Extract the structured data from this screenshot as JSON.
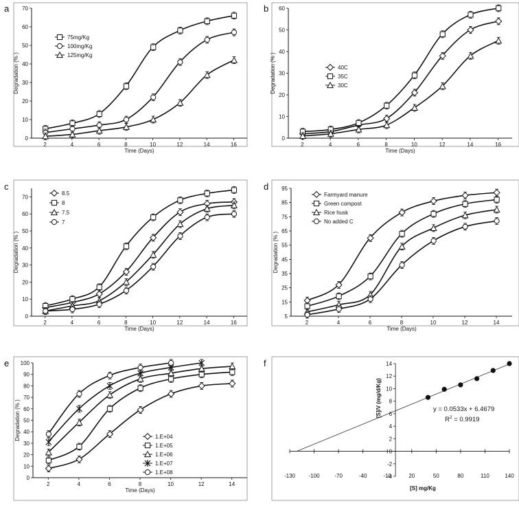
{
  "chart_data": [
    {
      "panel": "a",
      "type": "line",
      "xlabel": "Time (Days)",
      "ylabel": "Degradation (%   )",
      "xlim": [
        1,
        17
      ],
      "ylim": [
        0,
        70
      ],
      "xticks": [
        2,
        4,
        6,
        8,
        10,
        12,
        14,
        16
      ],
      "yticks": [
        0,
        10,
        20,
        30,
        40,
        50,
        60,
        70
      ],
      "legend_position": "top-left",
      "x": [
        2,
        4,
        6,
        8,
        10,
        12,
        14,
        16
      ],
      "series": [
        {
          "name": "75mg/Kg",
          "marker": "square",
          "values": [
            5,
            8,
            13,
            28,
            49,
            58,
            63,
            66
          ]
        },
        {
          "name": "100mg/Kg",
          "marker": "circle",
          "values": [
            3,
            5,
            7,
            10,
            22,
            41,
            53,
            57
          ]
        },
        {
          "name": "125mg/Kg",
          "marker": "triangle",
          "values": [
            1,
            2,
            4,
            6,
            10,
            19,
            34,
            42
          ]
        }
      ]
    },
    {
      "panel": "b",
      "type": "line",
      "xlabel": "Time (Days)",
      "ylabel": "Degradation (%   )",
      "xlim": [
        1,
        17
      ],
      "ylim": [
        0,
        60
      ],
      "xticks": [
        2,
        4,
        6,
        8,
        10,
        12,
        14,
        16
      ],
      "yticks": [
        0,
        10,
        20,
        30,
        40,
        50,
        60
      ],
      "legend_position": "middle-left",
      "x": [
        2,
        4,
        6,
        8,
        10,
        12,
        14,
        16
      ],
      "series": [
        {
          "name": "40C",
          "marker": "diamond",
          "values": [
            2,
            3,
            6,
            9,
            21,
            38,
            50,
            54
          ]
        },
        {
          "name": "35C",
          "marker": "square",
          "values": [
            3,
            4,
            7,
            15,
            29,
            48,
            57,
            60
          ]
        },
        {
          "name": "30C",
          "marker": "triangle",
          "values": [
            1,
            2,
            4,
            6,
            14,
            24,
            38,
            45
          ]
        }
      ]
    },
    {
      "panel": "c",
      "type": "line",
      "xlabel": "Time (Days)",
      "ylabel": "Degradation (%   )",
      "xlim": [
        1,
        17
      ],
      "ylim": [
        0,
        75
      ],
      "xticks": [
        2,
        4,
        6,
        8,
        10,
        12,
        14,
        16
      ],
      "yticks": [
        0,
        10,
        20,
        30,
        40,
        50,
        60,
        70
      ],
      "legend_position": "top-left",
      "x": [
        2,
        4,
        6,
        8,
        10,
        12,
        14,
        16
      ],
      "series": [
        {
          "name": "8.5",
          "marker": "diamond",
          "values": [
            5,
            8,
            13,
            26,
            46,
            61,
            66,
            67
          ]
        },
        {
          "name": "8",
          "marker": "square",
          "values": [
            6,
            10,
            17,
            41,
            58,
            68,
            72,
            74
          ]
        },
        {
          "name": "7.5",
          "marker": "triangle",
          "values": [
            3,
            6,
            9,
            20,
            36,
            54,
            63,
            65
          ]
        },
        {
          "name": "7",
          "marker": "circle",
          "values": [
            3,
            4,
            7,
            15,
            29,
            47,
            58,
            60
          ]
        }
      ]
    },
    {
      "panel": "d",
      "type": "line",
      "xlabel": "Time (Days)",
      "ylabel": "Degradation (%   )",
      "xlim": [
        1,
        15
      ],
      "ylim": [
        5,
        95
      ],
      "xticks": [
        2,
        4,
        6,
        8,
        10,
        12,
        14
      ],
      "yticks": [
        5,
        15,
        25,
        35,
        45,
        55,
        65,
        75,
        85,
        95
      ],
      "legend_position": "top-left",
      "x": [
        2,
        4,
        6,
        8,
        10,
        12,
        14
      ],
      "series": [
        {
          "name": "Farmyard manure",
          "marker": "diamond",
          "values": [
            16,
            27,
            60,
            78,
            86,
            90,
            92
          ]
        },
        {
          "name": "Green compost",
          "marker": "square",
          "values": [
            12,
            19,
            33,
            63,
            77,
            84,
            87
          ]
        },
        {
          "name": "Rice husk",
          "marker": "triangle",
          "values": [
            8,
            13,
            20,
            54,
            67,
            76,
            80
          ]
        },
        {
          "name": "No added C",
          "marker": "circle",
          "values": [
            6,
            10,
            17,
            41,
            58,
            68,
            72
          ]
        }
      ]
    },
    {
      "panel": "e",
      "type": "line",
      "xlabel": "Time (Days)",
      "ylabel": "Degradation (%   )",
      "xlim": [
        1,
        15
      ],
      "ylim": [
        0,
        100
      ],
      "xticks": [
        2,
        4,
        6,
        8,
        10,
        12,
        14
      ],
      "yticks": [
        0,
        10,
        20,
        30,
        40,
        50,
        60,
        70,
        80,
        90,
        100
      ],
      "legend_position": "bottom-right",
      "x": [
        2,
        4,
        6,
        8,
        10,
        12,
        14
      ],
      "series": [
        {
          "name": "1.E+04",
          "marker": "diamond",
          "values": [
            8,
            16,
            38,
            59,
            73,
            80,
            82
          ]
        },
        {
          "name": "1.E+05",
          "marker": "square",
          "values": [
            15,
            27,
            60,
            78,
            86,
            90,
            92
          ]
        },
        {
          "name": "1.E+06",
          "marker": "triangle",
          "values": [
            22,
            48,
            72,
            86,
            91,
            95,
            97
          ]
        },
        {
          "name": "1.E+07",
          "marker": "star",
          "values": [
            31,
            60,
            80,
            91,
            96,
            100,
            null
          ]
        },
        {
          "name": "1.E+08",
          "marker": "circle",
          "values": [
            38,
            73,
            89,
            96,
            100,
            null,
            null
          ]
        }
      ]
    },
    {
      "panel": "f",
      "type": "scatter",
      "xlabel": "[S] mg/Kg",
      "ylabel": "[S]/V (mg/d/Kg)",
      "xlim": [
        -130,
        140
      ],
      "ylim": [
        -4,
        14
      ],
      "xticks": [
        -130,
        -100,
        -70,
        -40,
        -10,
        20,
        50,
        80,
        110,
        140
      ],
      "xtick_labels": [
        "-130",
        "-100",
        "-70",
        "-40",
        "-10",
        "20",
        "50",
        "80",
        "110",
        "140"
      ],
      "yticks": [
        -4,
        -2,
        0,
        2,
        4,
        6,
        8,
        10,
        12,
        14
      ],
      "equation": "y = 0.0533x + 6.4679",
      "r_squared": "R",
      "r_squared_value": " = 0.9919",
      "trendline": {
        "slope": 0.0533,
        "intercept": 6.4679,
        "x_range": [
          -122,
          140
        ]
      },
      "points": {
        "x": [
          40,
          60,
          80,
          100,
          120,
          140
        ],
        "y": [
          8.6,
          9.9,
          10.6,
          11.6,
          12.9,
          14.0
        ]
      }
    }
  ]
}
